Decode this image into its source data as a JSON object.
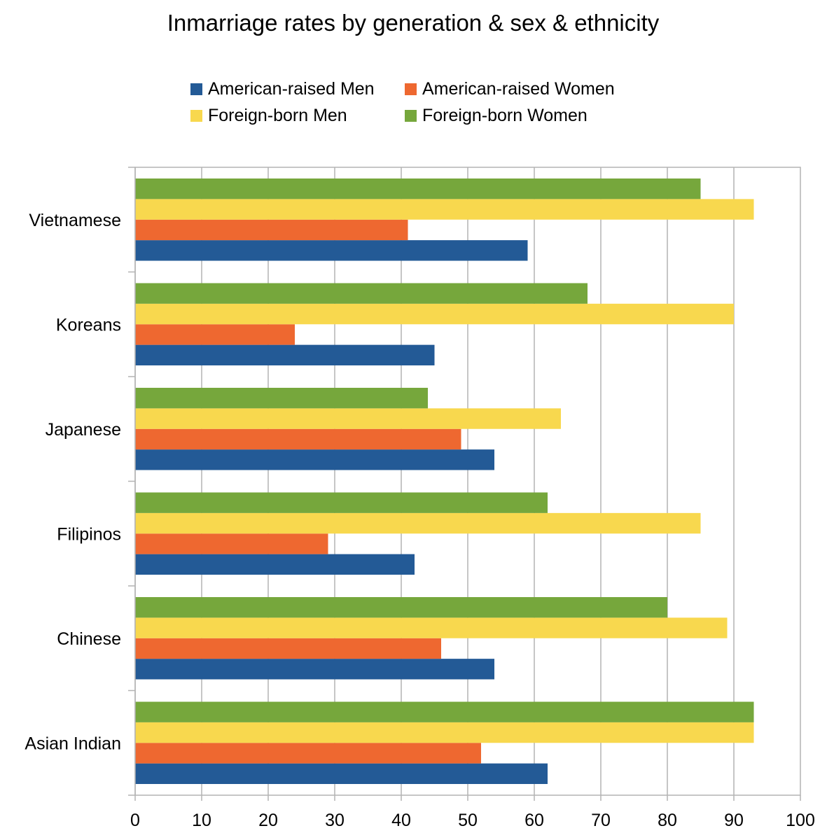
{
  "chart_data": {
    "type": "bar",
    "orientation": "horizontal",
    "title": "Inmarriage rates by generation & sex & ethnicity",
    "categories": [
      "Asian Indian",
      "Chinese",
      "Filipinos",
      "Japanese",
      "Koreans",
      "Vietnamese"
    ],
    "series": [
      {
        "name": "American-raised Men",
        "color": "#235a96",
        "values": [
          62,
          54,
          42,
          54,
          45,
          59
        ]
      },
      {
        "name": "American-raised Women",
        "color": "#ee6830",
        "values": [
          52,
          46,
          29,
          49,
          24,
          41
        ]
      },
      {
        "name": "Foreign-born Men",
        "color": "#f8d84e",
        "values": [
          93,
          89,
          85,
          64,
          90,
          93
        ]
      },
      {
        "name": "Foreign-born Women",
        "color": "#76a73c",
        "values": [
          93,
          80,
          62,
          44,
          68,
          85
        ]
      }
    ],
    "xlim": [
      0,
      100
    ],
    "xticks": [
      "0",
      "10",
      "20",
      "30",
      "40",
      "50",
      "60",
      "70",
      "80",
      "90",
      "100"
    ],
    "xlabel": "",
    "ylabel": "",
    "grid": true,
    "legend_position": "top"
  }
}
